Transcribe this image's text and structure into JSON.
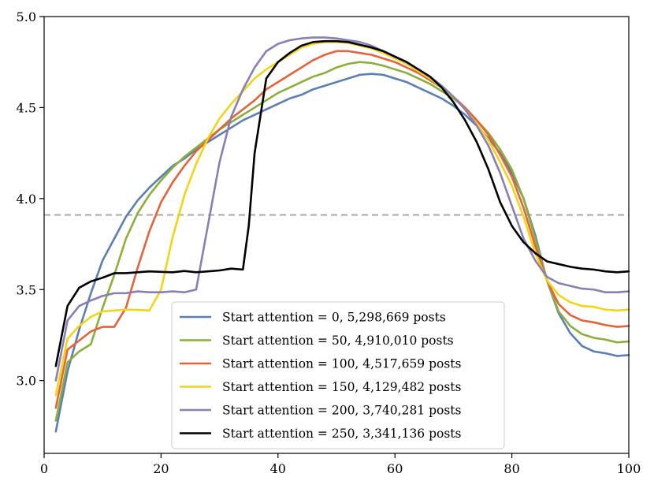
{
  "chart_data": {
    "type": "line",
    "title": "",
    "xlabel": "",
    "ylabel": "",
    "xlim": [
      0,
      100
    ],
    "ylim": [
      2.6,
      5.0
    ],
    "xticks": [
      0,
      20,
      40,
      60,
      80,
      100
    ],
    "xtick_labels": [
      "0",
      "20",
      "40",
      "60",
      "80",
      "100"
    ],
    "yticks": [
      3.0,
      3.5,
      4.0,
      4.5,
      5.0
    ],
    "ytick_labels": [
      "3.0",
      "3.5",
      "4.0",
      "4.5",
      "5.0"
    ],
    "grid": false,
    "legend_position": "lower-center",
    "reference_line": {
      "y": 3.91,
      "color": "#aaaaaa",
      "style": "dashed"
    },
    "series": [
      {
        "name": "Start attention = 0, 5,298,669 posts",
        "color": "#5b7fb4",
        "x": [
          2,
          4,
          6,
          8,
          10,
          12,
          14,
          16,
          18,
          20,
          22,
          24,
          26,
          28,
          30,
          32,
          34,
          36,
          38,
          40,
          42,
          44,
          46,
          48,
          50,
          52,
          54,
          56,
          58,
          60,
          62,
          64,
          66,
          68,
          70,
          72,
          74,
          76,
          78,
          80,
          82,
          84,
          86,
          88,
          90,
          92,
          94,
          96,
          98,
          100
        ],
        "values": [
          2.72,
          3.05,
          3.28,
          3.48,
          3.66,
          3.78,
          3.9,
          3.99,
          4.06,
          4.12,
          4.18,
          4.22,
          4.27,
          4.31,
          4.35,
          4.39,
          4.43,
          4.46,
          4.49,
          4.52,
          4.55,
          4.57,
          4.6,
          4.62,
          4.64,
          4.66,
          4.68,
          4.685,
          4.68,
          4.66,
          4.64,
          4.61,
          4.58,
          4.55,
          4.51,
          4.46,
          4.4,
          4.33,
          4.25,
          4.14,
          4.0,
          3.8,
          3.55,
          3.37,
          3.26,
          3.19,
          3.16,
          3.15,
          3.135,
          3.14
        ]
      },
      {
        "name": "Start attention = 50, 4,910,010 posts",
        "color": "#8ab03a",
        "x": [
          2,
          4,
          6,
          8,
          10,
          12,
          14,
          16,
          18,
          20,
          22,
          24,
          26,
          28,
          30,
          32,
          34,
          36,
          38,
          40,
          42,
          44,
          46,
          48,
          50,
          52,
          54,
          56,
          58,
          60,
          62,
          64,
          66,
          68,
          70,
          72,
          74,
          76,
          78,
          80,
          82,
          84,
          86,
          88,
          90,
          92,
          94,
          96,
          98,
          100
        ],
        "values": [
          2.78,
          3.1,
          3.16,
          3.2,
          3.4,
          3.58,
          3.78,
          3.92,
          4.02,
          4.1,
          4.17,
          4.23,
          4.28,
          4.33,
          4.38,
          4.42,
          4.46,
          4.5,
          4.54,
          4.58,
          4.61,
          4.64,
          4.67,
          4.69,
          4.72,
          4.74,
          4.75,
          4.745,
          4.73,
          4.71,
          4.69,
          4.66,
          4.63,
          4.59,
          4.55,
          4.5,
          4.43,
          4.36,
          4.27,
          4.16,
          4.0,
          3.78,
          3.55,
          3.38,
          3.3,
          3.255,
          3.235,
          3.225,
          3.21,
          3.215
        ]
      },
      {
        "name": "Start attention = 100, 4,517,659 posts",
        "color": "#e5633a",
        "x": [
          2,
          4,
          6,
          8,
          10,
          12,
          14,
          16,
          18,
          20,
          22,
          24,
          26,
          28,
          30,
          32,
          34,
          36,
          38,
          40,
          42,
          44,
          46,
          48,
          50,
          52,
          54,
          56,
          58,
          60,
          62,
          64,
          66,
          68,
          70,
          72,
          74,
          76,
          78,
          80,
          82,
          84,
          86,
          88,
          90,
          92,
          94,
          96,
          98,
          100
        ],
        "values": [
          2.85,
          3.17,
          3.22,
          3.27,
          3.295,
          3.295,
          3.4,
          3.62,
          3.82,
          3.98,
          4.09,
          4.18,
          4.26,
          4.32,
          4.38,
          4.44,
          4.49,
          4.54,
          4.6,
          4.64,
          4.68,
          4.72,
          4.76,
          4.79,
          4.81,
          4.81,
          4.8,
          4.79,
          4.77,
          4.75,
          4.72,
          4.69,
          4.65,
          4.61,
          4.56,
          4.5,
          4.43,
          4.35,
          4.24,
          4.12,
          3.95,
          3.74,
          3.55,
          3.42,
          3.36,
          3.33,
          3.32,
          3.305,
          3.295,
          3.3
        ]
      },
      {
        "name": "Start attention = 150, 4,129,482 posts",
        "color": "#f5d315",
        "x": [
          2,
          4,
          6,
          8,
          10,
          12,
          14,
          16,
          18,
          20,
          22,
          24,
          26,
          28,
          30,
          32,
          34,
          36,
          38,
          40,
          42,
          44,
          46,
          48,
          50,
          52,
          54,
          56,
          58,
          60,
          62,
          64,
          66,
          68,
          70,
          72,
          74,
          76,
          78,
          80,
          82,
          84,
          86,
          88,
          90,
          92,
          94,
          96,
          98,
          100
        ],
        "values": [
          2.92,
          3.23,
          3.3,
          3.35,
          3.38,
          3.385,
          3.39,
          3.388,
          3.385,
          3.5,
          3.79,
          4.02,
          4.19,
          4.33,
          4.44,
          4.52,
          4.59,
          4.66,
          4.71,
          4.75,
          4.79,
          4.83,
          4.85,
          4.86,
          4.86,
          4.855,
          4.84,
          4.825,
          4.8,
          4.77,
          4.74,
          4.7,
          4.66,
          4.61,
          4.56,
          4.49,
          4.41,
          4.32,
          4.2,
          4.07,
          3.9,
          3.7,
          3.55,
          3.47,
          3.43,
          3.41,
          3.405,
          3.39,
          3.385,
          3.39
        ]
      },
      {
        "name": "Start attention = 200, 3,740,281 posts",
        "color": "#8b7db5",
        "x": [
          2,
          4,
          6,
          8,
          10,
          12,
          14,
          16,
          18,
          20,
          22,
          24,
          26,
          28,
          30,
          32,
          34,
          36,
          38,
          40,
          42,
          44,
          46,
          48,
          50,
          52,
          54,
          56,
          58,
          60,
          62,
          64,
          66,
          68,
          70,
          72,
          74,
          76,
          78,
          80,
          82,
          84,
          86,
          88,
          90,
          92,
          94,
          96,
          98,
          100
        ],
        "values": [
          3.0,
          3.33,
          3.41,
          3.44,
          3.465,
          3.48,
          3.48,
          3.49,
          3.485,
          3.485,
          3.49,
          3.485,
          3.5,
          3.85,
          4.2,
          4.45,
          4.6,
          4.72,
          4.81,
          4.85,
          4.87,
          4.88,
          4.885,
          4.885,
          4.88,
          4.87,
          4.86,
          4.84,
          4.81,
          4.78,
          4.75,
          4.71,
          4.67,
          4.62,
          4.56,
          4.49,
          4.4,
          4.29,
          4.14,
          3.96,
          3.78,
          3.66,
          3.57,
          3.535,
          3.52,
          3.505,
          3.5,
          3.485,
          3.485,
          3.49
        ]
      },
      {
        "name": "Start attention = 250, 3,341,136 posts",
        "color": "#000000",
        "x": [
          2,
          4,
          6,
          8,
          10,
          12,
          14,
          16,
          18,
          20,
          22,
          24,
          26,
          28,
          30,
          32,
          34,
          35,
          36,
          38,
          40,
          42,
          44,
          46,
          48,
          50,
          52,
          54,
          56,
          58,
          60,
          62,
          64,
          66,
          68,
          70,
          72,
          74,
          76,
          78,
          80,
          82,
          84,
          86,
          88,
          90,
          92,
          94,
          96,
          98,
          100
        ],
        "values": [
          3.08,
          3.41,
          3.51,
          3.545,
          3.565,
          3.59,
          3.59,
          3.595,
          3.6,
          3.597,
          3.595,
          3.602,
          3.595,
          3.6,
          3.605,
          3.615,
          3.61,
          3.85,
          4.25,
          4.66,
          4.75,
          4.8,
          4.84,
          4.86,
          4.865,
          4.865,
          4.86,
          4.845,
          4.83,
          4.81,
          4.78,
          4.75,
          4.71,
          4.67,
          4.61,
          4.53,
          4.43,
          4.31,
          4.16,
          3.98,
          3.85,
          3.76,
          3.7,
          3.655,
          3.64,
          3.625,
          3.615,
          3.61,
          3.6,
          3.595,
          3.6
        ]
      }
    ]
  }
}
